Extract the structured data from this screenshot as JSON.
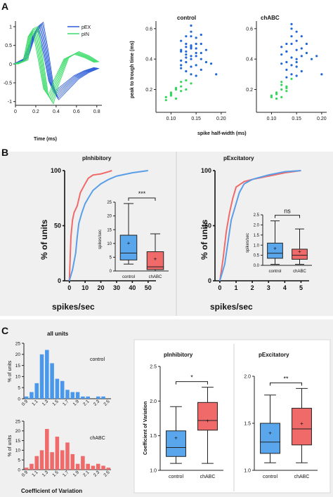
{
  "panels": {
    "a": "A",
    "b": "B",
    "c": "C"
  },
  "colors": {
    "blue": "#2a5bd7",
    "green": "#3ddc6a",
    "dot_blue": "#1f66d9",
    "dot_green": "#33d65a",
    "cdf_red": "#f06a6a",
    "cdf_blue": "#5b9ee8",
    "box_blue": "#5aa6ec",
    "box_red": "#f06a6a",
    "hist_blue": "#4a98ec",
    "hist_red": "#f06a6a"
  },
  "chart_data": [
    {
      "id": "waveforms",
      "type": "line",
      "xlabel": "Time (ms)",
      "ylabel": "",
      "xlim": [
        0,
        0.85
      ],
      "ylim": [
        -1.1,
        1.15
      ],
      "xticks": [
        "0",
        "0.2",
        "0.4",
        "0.6",
        "0.8"
      ],
      "yticks": [
        "-1",
        "-0.5",
        "0",
        "0.5",
        "1"
      ],
      "legend": [
        "pEX",
        "pIN"
      ],
      "series": [
        {
          "name": "pEX",
          "x": [
            0,
            0.1,
            0.2,
            0.25,
            0.3,
            0.35,
            0.4,
            0.5,
            0.6,
            0.7,
            0.8
          ],
          "y": [
            0,
            0.15,
            0.9,
            1.0,
            0.3,
            -0.5,
            -0.85,
            -0.6,
            -0.35,
            -0.2,
            -0.1
          ]
        },
        {
          "name": "pIN",
          "x": [
            0,
            0.1,
            0.15,
            0.2,
            0.25,
            0.3,
            0.35,
            0.4,
            0.5,
            0.6,
            0.7,
            0.8
          ],
          "y": [
            0,
            0.1,
            0.85,
            0.9,
            0.1,
            -0.75,
            -0.95,
            -0.5,
            0.15,
            0.3,
            0.2,
            0.05
          ]
        }
      ]
    },
    {
      "id": "scatter_control",
      "type": "scatter",
      "title": "control",
      "xlabel": "",
      "ylabel": "peak to trough time (ms)",
      "xlim": [
        0.07,
        0.21
      ],
      "ylim": [
        0.05,
        0.65
      ],
      "xticks": [
        "0.10",
        "0.15",
        "0.20"
      ],
      "yticks": [
        "0.2",
        "0.4",
        "0.6"
      ],
      "series": [
        {
          "name": "",
          "color": "blue",
          "x": [
            0.12,
            0.13,
            0.14,
            0.15,
            0.13,
            0.14,
            0.16,
            0.12,
            0.14,
            0.15,
            0.13,
            0.17,
            0.14,
            0.12,
            0.15,
            0.16,
            0.13,
            0.14,
            0.15,
            0.12,
            0.13,
            0.14,
            0.16,
            0.15,
            0.14,
            0.13,
            0.12,
            0.17,
            0.18,
            0.14,
            0.15,
            0.13,
            0.16,
            0.14,
            0.12,
            0.15,
            0.13,
            0.19,
            0.14,
            0.16
          ],
          "y": [
            0.45,
            0.5,
            0.55,
            0.42,
            0.38,
            0.47,
            0.44,
            0.52,
            0.4,
            0.36,
            0.48,
            0.46,
            0.58,
            0.34,
            0.5,
            0.4,
            0.43,
            0.35,
            0.47,
            0.39,
            0.55,
            0.3,
            0.5,
            0.44,
            0.42,
            0.32,
            0.46,
            0.38,
            0.37,
            0.62,
            0.54,
            0.41,
            0.33,
            0.48,
            0.36,
            0.29,
            0.45,
            0.3,
            0.49,
            0.56
          ]
        },
        {
          "name": "",
          "color": "green",
          "x": [
            0.09,
            0.1,
            0.11,
            0.12,
            0.1,
            0.11,
            0.13,
            0.12,
            0.09,
            0.11,
            0.12,
            0.13,
            0.1,
            0.14
          ],
          "y": [
            0.15,
            0.18,
            0.2,
            0.22,
            0.16,
            0.14,
            0.2,
            0.25,
            0.13,
            0.21,
            0.19,
            0.26,
            0.17,
            0.24
          ]
        }
      ]
    },
    {
      "id": "scatter_chabc",
      "type": "scatter",
      "title": "chABC",
      "xlabel": "",
      "ylabel": "",
      "xlim": [
        0.07,
        0.21
      ],
      "ylim": [
        0.05,
        0.65
      ],
      "xticks": [
        "0.10",
        "0.15",
        "0.20"
      ],
      "yticks": [
        "0.2",
        "0.4",
        "0.6"
      ],
      "series": [
        {
          "name": "",
          "color": "blue",
          "x": [
            0.13,
            0.14,
            0.15,
            0.12,
            0.14,
            0.16,
            0.15,
            0.13,
            0.14,
            0.17,
            0.15,
            0.13,
            0.16,
            0.14,
            0.12,
            0.15,
            0.14,
            0.18,
            0.13,
            0.15,
            0.16,
            0.14,
            0.13,
            0.17,
            0.15,
            0.14,
            0.12,
            0.16,
            0.15,
            0.13,
            0.19,
            0.2
          ],
          "y": [
            0.45,
            0.5,
            0.4,
            0.48,
            0.55,
            0.42,
            0.35,
            0.38,
            0.6,
            0.44,
            0.52,
            0.33,
            0.47,
            0.3,
            0.43,
            0.58,
            0.36,
            0.4,
            0.5,
            0.46,
            0.32,
            0.41,
            0.28,
            0.5,
            0.38,
            0.63,
            0.37,
            0.55,
            0.29,
            0.45,
            0.42,
            0.3
          ]
        },
        {
          "name": "",
          "color": "green",
          "x": [
            0.1,
            0.11,
            0.12,
            0.13,
            0.11,
            0.12,
            0.1,
            0.13,
            0.12,
            0.14,
            0.11,
            0.12,
            0.13
          ],
          "y": [
            0.15,
            0.17,
            0.2,
            0.22,
            0.14,
            0.25,
            0.16,
            0.19,
            0.23,
            0.27,
            0.18,
            0.15,
            0.21
          ]
        }
      ]
    },
    {
      "id": "cdf_pinhibitory",
      "type": "line",
      "title": "pInhibitory",
      "xlabel": "spikes/sec",
      "ylabel": "% of units",
      "xlim": [
        -3,
        55
      ],
      "ylim": [
        0,
        100
      ],
      "xticks": [
        "0",
        "10",
        "20",
        "30",
        "40",
        "50"
      ],
      "yticks": [
        "0",
        "50",
        "100"
      ],
      "series": [
        {
          "name": "",
          "color": "cdf_red",
          "x": [
            0,
            0.5,
            1,
            2,
            3,
            5,
            7,
            10,
            12,
            15,
            20,
            25,
            27
          ],
          "y": [
            0,
            20,
            40,
            55,
            62,
            68,
            80,
            88,
            93,
            96,
            97,
            99,
            100
          ]
        },
        {
          "name": "",
          "color": "cdf_blue",
          "x": [
            0,
            2,
            4,
            5,
            6,
            8,
            10,
            12,
            15,
            20,
            25,
            30,
            40,
            50
          ],
          "y": [
            0,
            10,
            25,
            40,
            52,
            62,
            70,
            75,
            82,
            88,
            92,
            95,
            98,
            100
          ]
        }
      ],
      "inset": {
        "type": "box",
        "ylabel": "spikes/sec",
        "ylim": [
          0,
          25
        ],
        "yticks": [
          "0",
          "5",
          "10",
          "15",
          "20",
          "25"
        ],
        "categories": [
          "control",
          "chABC"
        ],
        "boxes": [
          {
            "name": "control",
            "min": 2.5,
            "q1": 4,
            "median": 6.5,
            "q3": 13,
            "max": 24.5,
            "mean": 10.2,
            "color": "box_blue"
          },
          {
            "name": "chABC",
            "min": 0,
            "q1": 0.5,
            "median": 1.5,
            "q3": 7,
            "max": 13.5,
            "mean": 4.5,
            "color": "box_red"
          }
        ],
        "annotation": "***"
      }
    },
    {
      "id": "cdf_pexcitatory",
      "type": "line",
      "title": "pExcitatory",
      "xlabel": "spikes/sec",
      "ylabel": "",
      "xlim": [
        -0.3,
        5.5
      ],
      "ylim": [
        0,
        100
      ],
      "xticks": [
        "0",
        "1",
        "2",
        "3",
        "4",
        "5"
      ],
      "yticks": [
        "0",
        "50",
        "100"
      ],
      "series": [
        {
          "name": "",
          "color": "cdf_red",
          "x": [
            0,
            0.2,
            0.4,
            0.6,
            0.8,
            1,
            1.5,
            2,
            3,
            4,
            5
          ],
          "y": [
            0,
            20,
            45,
            62,
            75,
            85,
            90,
            92,
            95,
            98,
            100
          ]
        },
        {
          "name": "",
          "color": "cdf_blue",
          "x": [
            0,
            0.3,
            0.5,
            0.7,
            1,
            1.2,
            1.5,
            2,
            3,
            4,
            5
          ],
          "y": [
            0,
            15,
            35,
            55,
            70,
            80,
            88,
            92,
            96,
            99,
            100
          ]
        }
      ],
      "inset": {
        "type": "box",
        "ylabel": "spikes/sec",
        "ylim": [
          0,
          2.5
        ],
        "yticks": [
          "0.0",
          "0.5",
          "1.0",
          "1.5",
          "2.0",
          "2.5"
        ],
        "categories": [
          "control",
          "chABC"
        ],
        "boxes": [
          {
            "name": "control",
            "min": 0.05,
            "q1": 0.35,
            "median": 0.6,
            "q3": 1.1,
            "max": 2.2,
            "mean": 0.85,
            "color": "box_blue"
          },
          {
            "name": "chABC",
            "min": 0.05,
            "q1": 0.3,
            "median": 0.5,
            "q3": 0.8,
            "max": 1.8,
            "mean": 0.7,
            "color": "box_red"
          }
        ],
        "annotation": "ns"
      }
    },
    {
      "id": "hist_control",
      "type": "bar",
      "title": "all units",
      "label": "control",
      "xlabel": "",
      "ylabel": "% of units",
      "ylim": [
        0,
        25
      ],
      "yticks": [
        "0",
        "5",
        "10",
        "15",
        "20",
        "25"
      ],
      "xticks": [
        "0.9",
        "1.1",
        "1.3",
        "1.5",
        "1.7",
        "1.9",
        "2.1",
        "2.3",
        "2.5"
      ],
      "x": [
        0.9,
        1.0,
        1.1,
        1.2,
        1.3,
        1.4,
        1.5,
        1.6,
        1.7,
        1.8,
        1.9,
        2.0,
        2.1,
        2.2,
        2.3,
        2.4,
        2.5
      ],
      "values": [
        1,
        3,
        7,
        20,
        22,
        16,
        9,
        8,
        4,
        3,
        3,
        1,
        1,
        0,
        1,
        1,
        0
      ]
    },
    {
      "id": "hist_chabc",
      "type": "bar",
      "label": "chABC",
      "xlabel": "Coefficient of Variation",
      "ylabel": "% of units",
      "ylim": [
        0,
        25
      ],
      "yticks": [
        "0",
        "5",
        "10",
        "15",
        "20",
        "25"
      ],
      "xticks": [
        "0.9",
        "1.1",
        "1.3",
        "1.5",
        "1.7",
        "1.9",
        "2.1",
        "2.3",
        "2.5"
      ],
      "x": [
        0.9,
        1.0,
        1.1,
        1.2,
        1.3,
        1.4,
        1.5,
        1.6,
        1.7,
        1.8,
        1.9,
        2.0,
        2.1,
        2.2,
        2.3,
        2.4,
        2.5
      ],
      "values": [
        1,
        3,
        7,
        10,
        21,
        9,
        17,
        10,
        14,
        8,
        3,
        7,
        3,
        2,
        3,
        2,
        1
      ]
    },
    {
      "id": "cv_pinhibitory",
      "type": "box",
      "title": "pInhibitory",
      "ylabel": "Coefficient of Variation",
      "ylim": [
        1.0,
        2.5
      ],
      "yticks": [
        "1.0",
        "1.5",
        "2.0",
        "2.5"
      ],
      "categories": [
        "control",
        "chABC"
      ],
      "boxes": [
        {
          "name": "control",
          "min": 1.1,
          "q1": 1.2,
          "median": 1.33,
          "q3": 1.57,
          "max": 1.92,
          "mean": 1.47,
          "color": "box_blue"
        },
        {
          "name": "chABC",
          "min": 1.1,
          "q1": 1.58,
          "median": 1.72,
          "q3": 1.98,
          "max": 2.2,
          "mean": 1.72,
          "color": "box_red"
        }
      ],
      "annotation": "*"
    },
    {
      "id": "cv_pexcitatory",
      "type": "box",
      "title": "pExcitatory",
      "ylabel": "",
      "ylim": [
        1.0,
        2.0
      ],
      "yticks": [
        "1.0",
        "1.5",
        "2.0"
      ],
      "categories": [
        "control",
        "chABC"
      ],
      "boxes": [
        {
          "name": "control",
          "min": 1.08,
          "q1": 1.18,
          "median": 1.3,
          "q3": 1.5,
          "max": 1.8,
          "mean": 1.4,
          "color": "box_blue"
        },
        {
          "name": "chABC",
          "min": 1.08,
          "q1": 1.27,
          "median": 1.44,
          "q3": 1.66,
          "max": 1.87,
          "mean": 1.5,
          "color": "box_red"
        }
      ],
      "annotation": "**"
    }
  ],
  "labels": {
    "scatter_xlabel": "spike half-width (ms)"
  }
}
